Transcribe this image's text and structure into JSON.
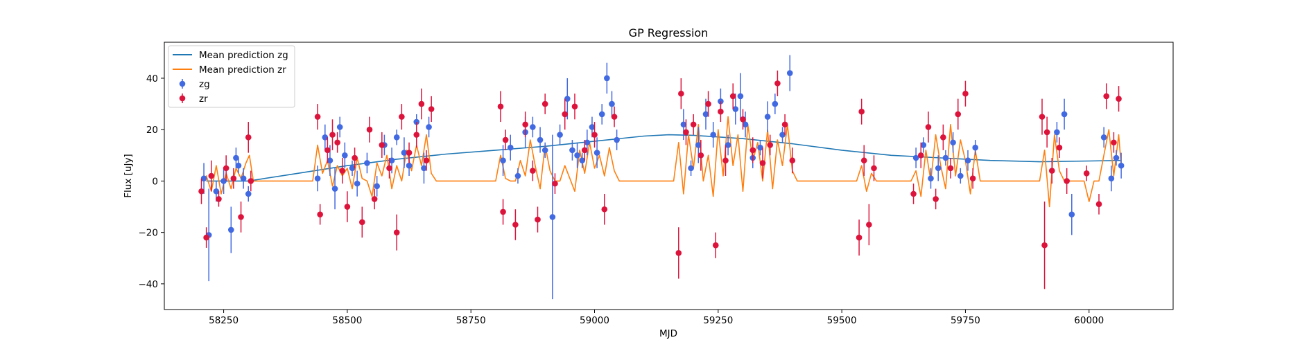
{
  "chart_data": {
    "type": "scatter",
    "title": "GP Regression",
    "xlabel": "MJD",
    "ylabel": "Flux [uJy]",
    "xlim": [
      58130,
      60170
    ],
    "ylim": [
      -50,
      54
    ],
    "xticks": [
      58250,
      58500,
      58750,
      59000,
      59250,
      59500,
      59750,
      60000
    ],
    "yticks": [
      -40,
      -20,
      0,
      20,
      40
    ],
    "grid": false,
    "legend_position": "top-left",
    "legend": [
      {
        "label": "Mean prediction zg",
        "kind": "line",
        "color": "#1f77b4"
      },
      {
        "label": "Mean prediction zr",
        "kind": "line",
        "color": "#ff7f0e"
      },
      {
        "label": "zg",
        "kind": "errorbar",
        "color": "#4169e1"
      },
      {
        "label": "zr",
        "kind": "errorbar",
        "color": "#dc143c"
      }
    ],
    "lines": [
      {
        "name": "Mean prediction zg",
        "color": "#1f77b4",
        "x": [
          58215,
          58300,
          58400,
          58500,
          58600,
          58700,
          58800,
          58900,
          59000,
          59100,
          59150,
          59200,
          59300,
          59400,
          59500,
          59600,
          59700,
          59800,
          59900,
          60000,
          60065
        ],
        "y": [
          0,
          0,
          3,
          6,
          8.5,
          10.5,
          12,
          13.5,
          15.5,
          17.5,
          18,
          17.8,
          16.5,
          14.5,
          12,
          10,
          9,
          8,
          7.5,
          7.8,
          8
        ]
      },
      {
        "name": "Mean prediction zr",
        "color": "#ff7f0e",
        "x": [
          58205,
          58215,
          58225,
          58235,
          58245,
          58255,
          58265,
          58275,
          58285,
          58295,
          58302,
          58310,
          58430,
          58440,
          58450,
          58460,
          58470,
          58480,
          58490,
          58500,
          58510,
          58520,
          58530,
          58540,
          58550,
          58560,
          58570,
          58580,
          58590,
          58600,
          58610,
          58620,
          58630,
          58640,
          58650,
          58660,
          58670,
          58680,
          58800,
          58810,
          58820,
          58830,
          58840,
          58850,
          58860,
          58870,
          58880,
          58890,
          58900,
          58910,
          58920,
          58930,
          58940,
          58950,
          58960,
          58970,
          58980,
          58990,
          59000,
          59010,
          59020,
          59030,
          59040,
          59050,
          59160,
          59170,
          59180,
          59190,
          59200,
          59210,
          59220,
          59230,
          59240,
          59250,
          59260,
          59270,
          59280,
          59290,
          59300,
          59310,
          59320,
          59330,
          59340,
          59350,
          59360,
          59370,
          59380,
          59390,
          59400,
          59410,
          59530,
          59540,
          59550,
          59560,
          59570,
          59640,
          59650,
          59660,
          59670,
          59680,
          59690,
          59700,
          59710,
          59720,
          59730,
          59740,
          59750,
          59760,
          59770,
          59780,
          59900,
          59910,
          59920,
          59930,
          59940,
          59950,
          59970,
          59990,
          60000,
          60010,
          60020,
          60030,
          60040,
          60050,
          60060,
          60065
        ],
        "y": [
          0,
          2,
          -4,
          6,
          -5,
          3,
          -3,
          5,
          1,
          7,
          10,
          0,
          0,
          14,
          3,
          8,
          -2,
          6,
          2,
          5,
          -3,
          9,
          1,
          0,
          -6,
          7,
          2,
          10,
          -3,
          6,
          0,
          12,
          4,
          14,
          6,
          18,
          3,
          0,
          0,
          10,
          1,
          0,
          0,
          8,
          2,
          16,
          6,
          -3,
          14,
          4,
          0,
          0,
          6,
          1,
          -4,
          12,
          3,
          15,
          5,
          10,
          2,
          13,
          4,
          0,
          0,
          15,
          -5,
          18,
          5,
          22,
          0,
          10,
          -6,
          20,
          2,
          25,
          6,
          18,
          -4,
          22,
          8,
          15,
          0,
          20,
          -3,
          16,
          6,
          22,
          4,
          0,
          0,
          6,
          -4,
          3,
          0,
          0,
          4,
          -6,
          12,
          0,
          18,
          6,
          -3,
          22,
          2,
          16,
          8,
          -5,
          12,
          0,
          0,
          12,
          -10,
          18,
          4,
          0,
          0,
          0,
          -8,
          0,
          0,
          10,
          20,
          2,
          18,
          6
        ]
      }
    ],
    "series": [
      {
        "name": "zg",
        "color": "#4169e1",
        "x": [
          58210,
          58220,
          58235,
          58250,
          58265,
          58275,
          58280,
          58290,
          58300,
          58440,
          58455,
          58465,
          58475,
          58485,
          58495,
          58510,
          58520,
          58540,
          58560,
          58575,
          58590,
          58600,
          58615,
          58625,
          58640,
          58655,
          58665,
          58815,
          58830,
          58845,
          58860,
          58875,
          58890,
          58900,
          58915,
          58930,
          58945,
          58955,
          58965,
          58975,
          58985,
          58995,
          59005,
          59015,
          59025,
          59035,
          59045,
          59180,
          59195,
          59210,
          59225,
          59240,
          59255,
          59270,
          59285,
          59295,
          59305,
          59320,
          59335,
          59350,
          59365,
          59380,
          59395,
          59650,
          59665,
          59680,
          59695,
          59710,
          59725,
          59740,
          59755,
          59770,
          59935,
          59950,
          59965,
          60030,
          60045,
          60055,
          60065
        ],
        "y": [
          1,
          -21,
          -4,
          0,
          -19,
          9,
          6,
          1,
          -5,
          1,
          17,
          8,
          -3,
          21,
          10,
          5,
          -1,
          7,
          -2,
          14,
          8,
          17,
          11,
          6,
          23,
          5,
          21,
          8,
          13,
          2,
          19,
          21,
          16,
          12,
          -14,
          18,
          32,
          12,
          10,
          8,
          15,
          21,
          11,
          26,
          40,
          30,
          16,
          22,
          5,
          14,
          26,
          18,
          31,
          14,
          28,
          33,
          22,
          9,
          13,
          25,
          30,
          18,
          42,
          9,
          14,
          1,
          5,
          9,
          15,
          2,
          8,
          13,
          19,
          26,
          -13,
          17,
          1,
          9,
          6
        ],
        "err": [
          6,
          18,
          4,
          5,
          9,
          4,
          3,
          4,
          3,
          5,
          5,
          6,
          8,
          4,
          5,
          3,
          5,
          4,
          4,
          4,
          5,
          3,
          6,
          4,
          3,
          6,
          4,
          6,
          5,
          3,
          6,
          4,
          5,
          3,
          32,
          4,
          8,
          4,
          5,
          3,
          5,
          4,
          6,
          4,
          6,
          5,
          4,
          6,
          3,
          7,
          6,
          5,
          5,
          4,
          6,
          9,
          5,
          4,
          3,
          6,
          4,
          3,
          7,
          4,
          3,
          4,
          5,
          3,
          4,
          3,
          4,
          3,
          4,
          6,
          8,
          4,
          5,
          3,
          5
        ]
      },
      {
        "name": "zr",
        "color": "#dc143c",
        "x": [
          58205,
          58215,
          58225,
          58240,
          58255,
          58270,
          58285,
          58300,
          58305,
          58440,
          58445,
          58460,
          58470,
          58480,
          58490,
          58500,
          58515,
          58530,
          58545,
          58555,
          58570,
          58585,
          58600,
          58610,
          58625,
          58640,
          58650,
          58660,
          58670,
          58810,
          58815,
          58820,
          58840,
          58860,
          58875,
          58885,
          58900,
          58920,
          58940,
          58960,
          58980,
          59000,
          59020,
          59040,
          59170,
          59175,
          59185,
          59200,
          59215,
          59230,
          59245,
          59255,
          59265,
          59280,
          59300,
          59320,
          59340,
          59355,
          59370,
          59385,
          59400,
          59535,
          59540,
          59545,
          59555,
          59565,
          59645,
          59660,
          59675,
          59690,
          59705,
          59720,
          59735,
          59750,
          59765,
          59905,
          59910,
          59915,
          59925,
          59940,
          59955,
          59995,
          60020,
          60035,
          60050,
          60060
        ],
        "y": [
          -4,
          -22,
          2,
          -7,
          5,
          1,
          -14,
          17,
          0,
          25,
          -13,
          12,
          18,
          15,
          4,
          -10,
          9,
          -16,
          20,
          -7,
          14,
          5,
          -20,
          25,
          11,
          18,
          30,
          8,
          28,
          29,
          -12,
          16,
          -17,
          22,
          4,
          -15,
          30,
          -1,
          26,
          29,
          12,
          18,
          -11,
          25,
          -28,
          34,
          19,
          22,
          10,
          30,
          -25,
          27,
          8,
          33,
          24,
          12,
          7,
          14,
          38,
          22,
          8,
          -22,
          27,
          8,
          -17,
          5,
          -5,
          10,
          21,
          -7,
          17,
          5,
          26,
          34,
          1,
          25,
          -25,
          19,
          4,
          13,
          0,
          3,
          -9,
          33,
          15,
          32
        ],
        "err": [
          5,
          4,
          6,
          3,
          5,
          4,
          6,
          6,
          4,
          5,
          4,
          5,
          6,
          4,
          5,
          6,
          4,
          6,
          5,
          4,
          5,
          4,
          7,
          5,
          4,
          5,
          6,
          4,
          5,
          6,
          5,
          4,
          6,
          5,
          4,
          5,
          4,
          4,
          6,
          5,
          4,
          5,
          6,
          4,
          10,
          6,
          5,
          4,
          6,
          5,
          5,
          4,
          6,
          5,
          4,
          5,
          6,
          4,
          5,
          4,
          5,
          7,
          5,
          6,
          8,
          5,
          4,
          5,
          6,
          4,
          5,
          4,
          6,
          5,
          4,
          7,
          17,
          6,
          5,
          4,
          5,
          3,
          4,
          5,
          4,
          5
        ]
      }
    ]
  }
}
